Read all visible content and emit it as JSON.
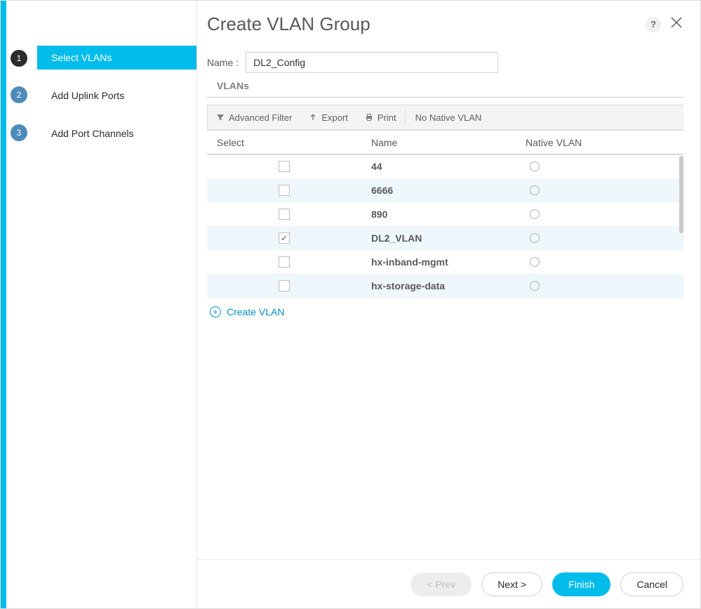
{
  "colors": {
    "accent": "#00bceb",
    "link": "#0391c4",
    "step_active_bg": "#2b2b2b",
    "step_inactive_bg": "#4d8bba",
    "row_alt_bg": "#eef7fb",
    "border": "#dddddd"
  },
  "header": {
    "title": "Create VLAN Group",
    "help": "?"
  },
  "steps": [
    {
      "num": "1",
      "label": "Select VLANs",
      "active": true
    },
    {
      "num": "2",
      "label": "Add Uplink Ports",
      "active": false
    },
    {
      "num": "3",
      "label": "Add Port Channels",
      "active": false
    }
  ],
  "form": {
    "name_label": "Name :",
    "name_value": "DL2_Config",
    "section_label": "VLANs"
  },
  "toolbar": {
    "filter": "Advanced Filter",
    "export": "Export",
    "print": "Print",
    "native_text": "No Native VLAN"
  },
  "table": {
    "columns": {
      "select": "Select",
      "name": "Name",
      "native": "Native VLAN"
    },
    "rows": [
      {
        "selected": false,
        "name": "44",
        "alt": false
      },
      {
        "selected": false,
        "name": "6666",
        "alt": true
      },
      {
        "selected": false,
        "name": "890",
        "alt": false
      },
      {
        "selected": true,
        "name": "DL2_VLAN",
        "alt": true
      },
      {
        "selected": false,
        "name": "hx-inband-mgmt",
        "alt": false
      },
      {
        "selected": false,
        "name": "hx-storage-data",
        "alt": true
      }
    ]
  },
  "create_link": "Create VLAN",
  "footer": {
    "prev": "< Prev",
    "next": "Next >",
    "finish": "Finish",
    "cancel": "Cancel"
  }
}
